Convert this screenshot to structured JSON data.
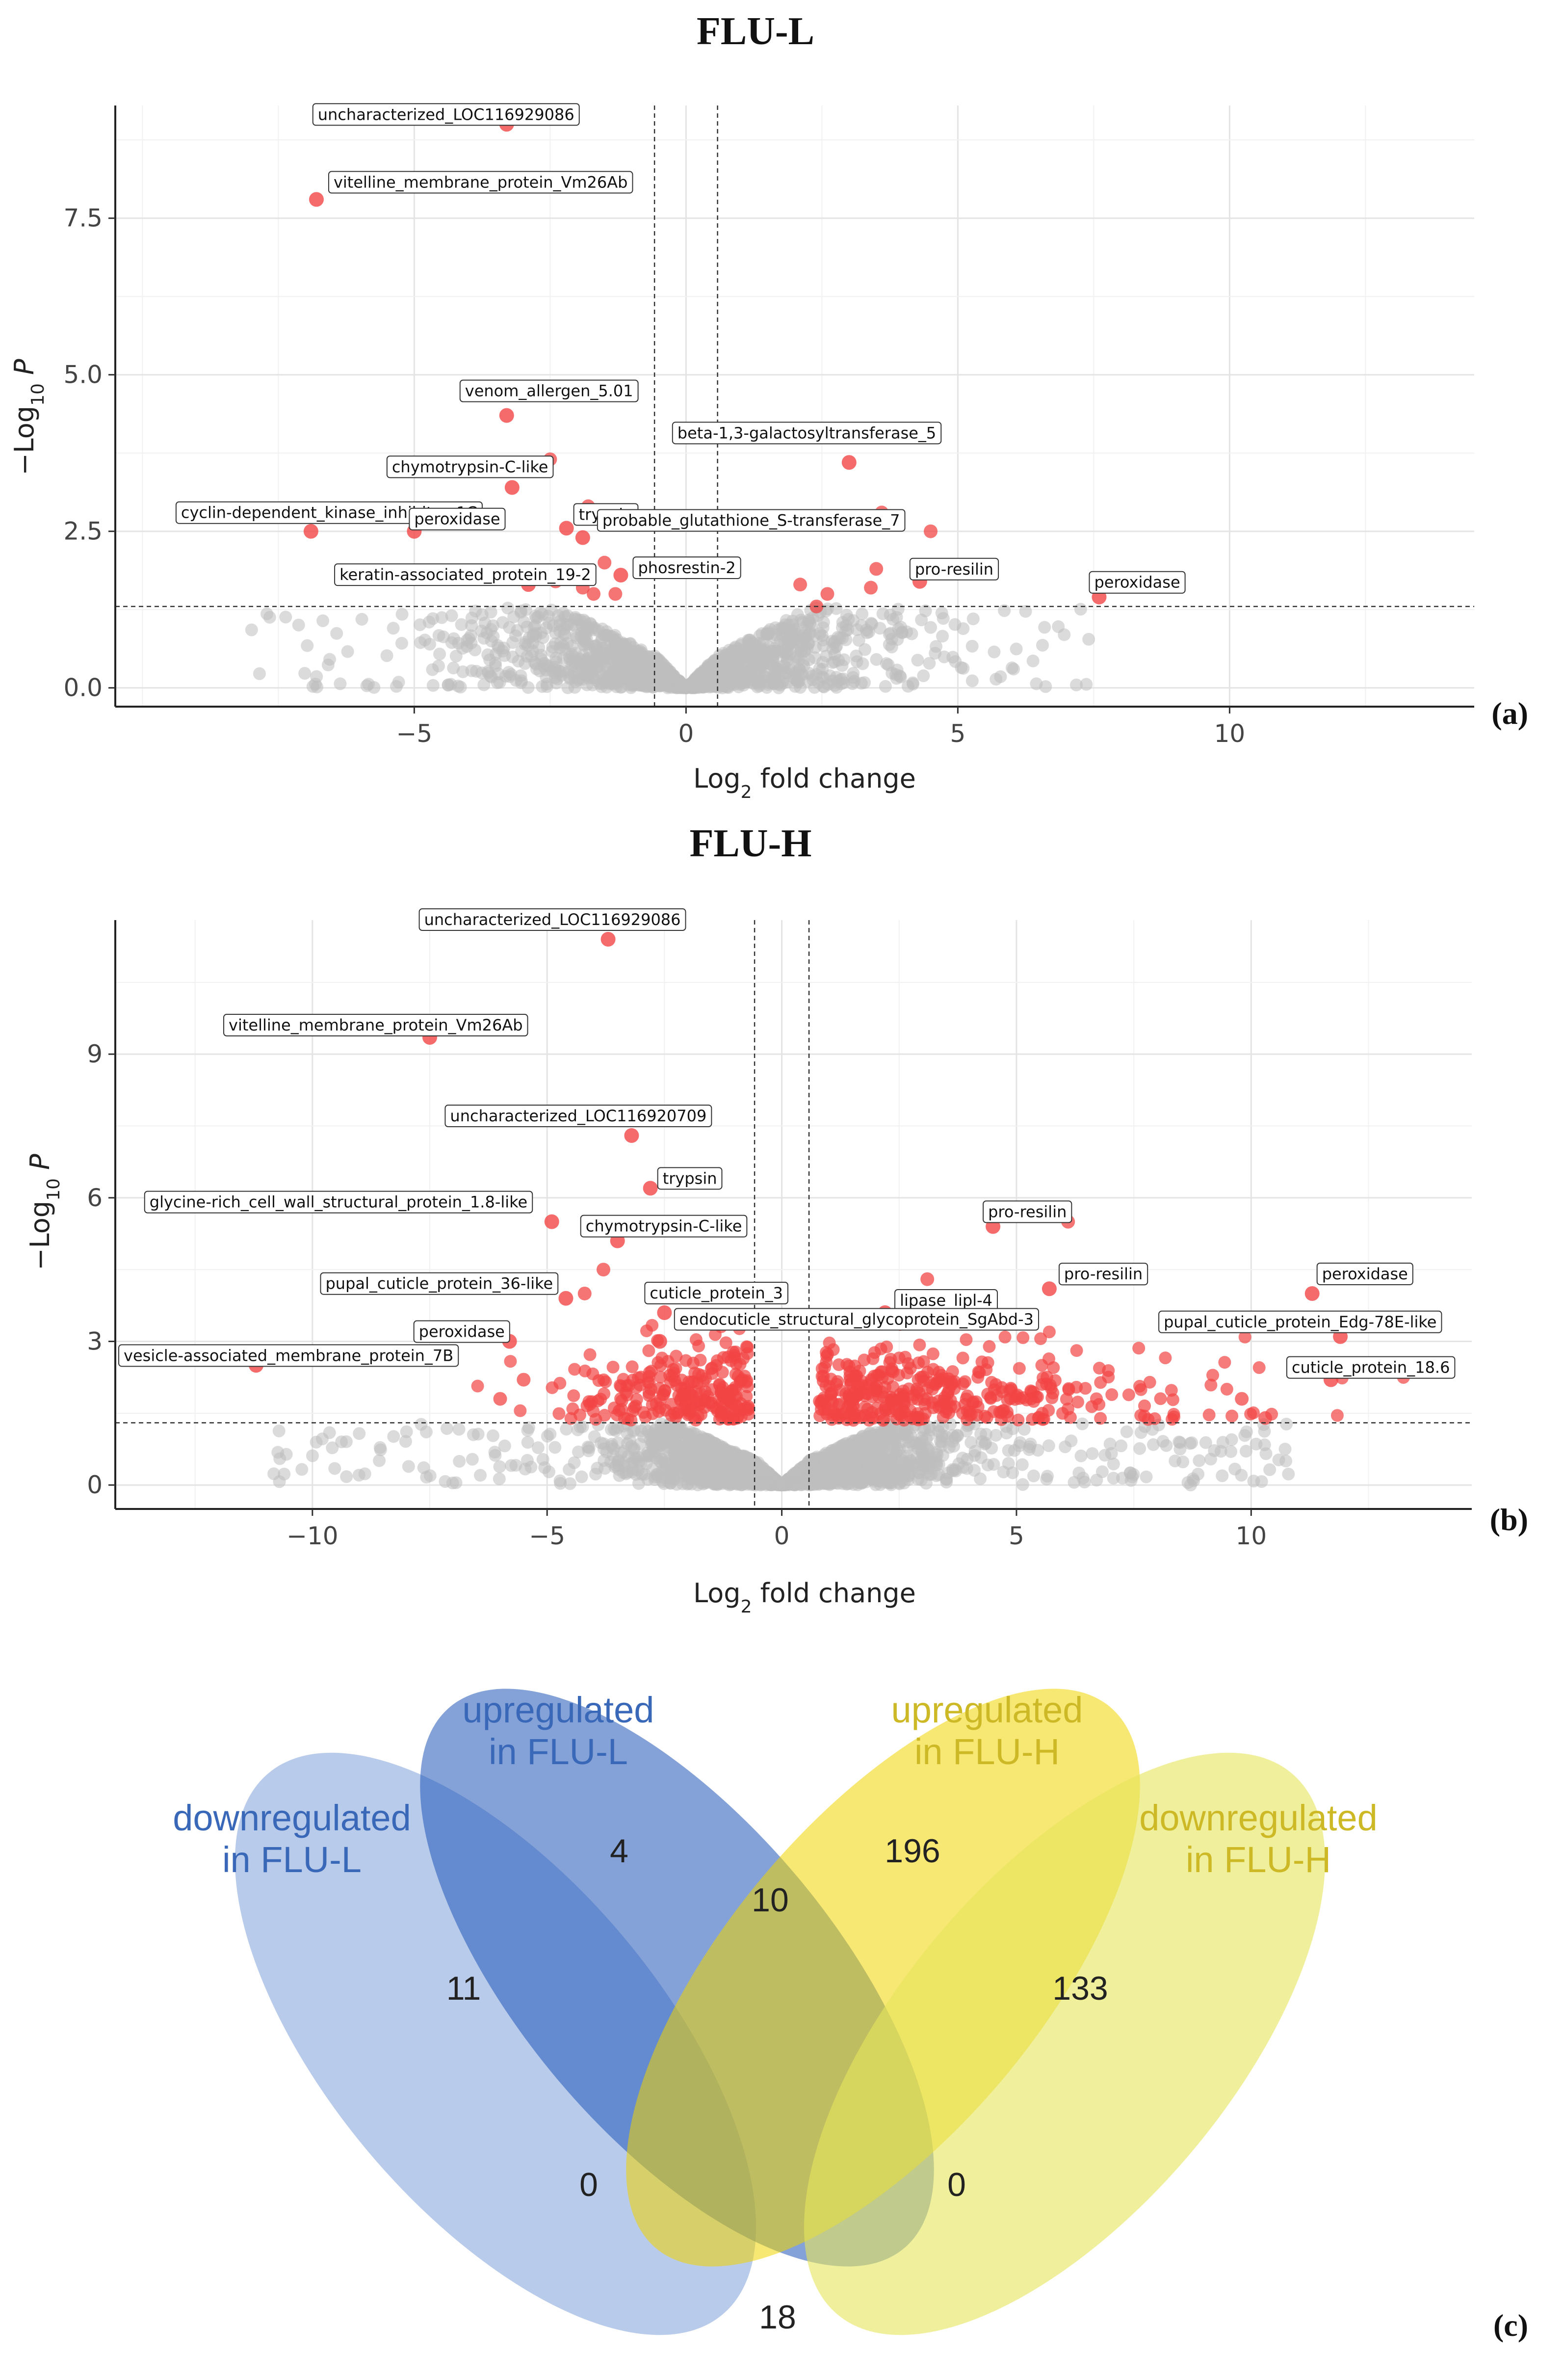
{
  "colors": {
    "significant": "#f24545",
    "nonsignificant": "#bdbdbd",
    "blue_dark": "#1f55b8",
    "blue_light": "#8aa8dc",
    "yellow_bright": "#f0d400",
    "yellow_light": "#e6e45a",
    "blue_text": "#3a68b8",
    "yellow_text": "#cdb826"
  },
  "chart_data": [
    {
      "type": "scatter",
      "panel": "(a)",
      "title": "FLU-L",
      "xlabel": "Log2 fold change",
      "ylabel": "−Log10 P",
      "xlim": [
        -10.5,
        14.5
      ],
      "ylim": [
        -0.3,
        9.3
      ],
      "xticks": [
        -5,
        0,
        5,
        10
      ],
      "xtick_labels": [
        "−5",
        "0",
        "5",
        "10"
      ],
      "yticks": [
        0,
        2.5,
        5,
        7.5
      ],
      "ytick_labels": [
        "0.0",
        "2.5",
        "5.0",
        "7.5"
      ],
      "fc_cutoff": 0.58,
      "p_cutoff": 1.3,
      "labelled_points": [
        {
          "x": -3.3,
          "y": 9.0,
          "label": "uncharacterized_LOC116929086"
        },
        {
          "x": -6.8,
          "y": 7.8,
          "label": "vitelline_membrane_protein_Vm26Ab"
        },
        {
          "x": -3.3,
          "y": 4.35,
          "label": "venom_allergen_5.01"
        },
        {
          "x": -3.2,
          "y": 3.2,
          "label": "chymotrypsin-C-like"
        },
        {
          "x": -6.9,
          "y": 2.5,
          "label": "cyclin-dependent_kinase_inhibitor_1C"
        },
        {
          "x": -2.2,
          "y": 2.55,
          "label": "trypsin"
        },
        {
          "x": -5.0,
          "y": 2.5,
          "label": "peroxidase"
        },
        {
          "x": -1.9,
          "y": 2.4,
          "label": "probable_glutathione_S-transferase_7"
        },
        {
          "x": -1.2,
          "y": 1.8,
          "label": "phosrestin-2"
        },
        {
          "x": -2.9,
          "y": 1.65,
          "label": "keratin-associated_protein_19-2"
        },
        {
          "x": 3.0,
          "y": 3.6,
          "label": "beta-1,3-galactosyltransferase_5"
        },
        {
          "x": 4.3,
          "y": 1.7,
          "label": "pro-resilin"
        },
        {
          "x": 7.6,
          "y": 1.45,
          "label": "peroxidase"
        }
      ],
      "other_significant": [
        [
          -2.5,
          3.65
        ],
        [
          -1.8,
          2.9
        ],
        [
          -2.2,
          1.8
        ],
        [
          -1.5,
          2.0
        ],
        [
          -1.9,
          1.6
        ],
        [
          -1.3,
          1.5
        ],
        [
          -2.4,
          1.7
        ],
        [
          2.1,
          1.65
        ],
        [
          2.6,
          1.5
        ],
        [
          2.4,
          1.3
        ],
        [
          3.6,
          2.8
        ],
        [
          4.5,
          2.5
        ],
        [
          3.5,
          1.9
        ],
        [
          3.4,
          1.6
        ],
        [
          -1.7,
          1.5
        ]
      ]
    },
    {
      "type": "scatter",
      "panel": "(b)",
      "title": "FLU-H",
      "xlabel": "Log2 fold change",
      "ylabel": "−Log10 P",
      "xlim": [
        -14.2,
        14.7
      ],
      "ylim": [
        -0.5,
        11.8
      ],
      "xticks": [
        -10,
        -5,
        0,
        5,
        10
      ],
      "xtick_labels": [
        "−10",
        "−5",
        "0",
        "5",
        "10"
      ],
      "yticks": [
        0,
        3,
        6,
        9
      ],
      "ytick_labels": [
        "0",
        "3",
        "6",
        "9"
      ],
      "fc_cutoff": 0.58,
      "p_cutoff": 1.3,
      "labelled_points": [
        {
          "x": -3.7,
          "y": 11.4,
          "label": "uncharacterized_LOC116929086"
        },
        {
          "x": -7.5,
          "y": 9.35,
          "label": "vitelline_membrane_protein_Vm26Ab"
        },
        {
          "x": -3.2,
          "y": 7.3,
          "label": "uncharacterized_LOC116920709"
        },
        {
          "x": -2.8,
          "y": 6.2,
          "label": "trypsin"
        },
        {
          "x": -4.9,
          "y": 5.5,
          "label": "glycine-rich_cell_wall_structural_protein_1.8-like"
        },
        {
          "x": -3.5,
          "y": 5.1,
          "label": "chymotrypsin-C-like"
        },
        {
          "x": -4.6,
          "y": 3.9,
          "label": "pupal_cuticle_protein_36-like"
        },
        {
          "x": -2.5,
          "y": 3.6,
          "label": "cuticle_protein_3"
        },
        {
          "x": -5.8,
          "y": 3.0,
          "label": "peroxidase"
        },
        {
          "x": 2.2,
          "y": 3.6,
          "label": "lipase_lipl-4"
        },
        {
          "x": -2.6,
          "y": 3.0,
          "label": "endocuticle_structural_glycoprotein_SgAbd-3"
        },
        {
          "x": 4.5,
          "y": 5.4,
          "label": "pro-resilin"
        },
        {
          "x": 5.7,
          "y": 4.1,
          "label": "pro-resilin"
        },
        {
          "x": 11.3,
          "y": 4.0,
          "label": "peroxidase"
        },
        {
          "x": 11.9,
          "y": 3.1,
          "label": "pupal_cuticle_protein_Edg-78E-like"
        },
        {
          "x": 11.7,
          "y": 2.2,
          "label": "cuticle_protein_18.6"
        },
        {
          "x": -11.2,
          "y": 2.5,
          "label": "vesicle-associated_membrane_protein_7B"
        }
      ],
      "other_significant": [
        [
          6.1,
          5.5
        ],
        [
          -4.2,
          4.0
        ],
        [
          -3.8,
          4.5
        ],
        [
          -5.5,
          2.2
        ],
        [
          -6.0,
          1.8
        ],
        [
          10.3,
          1.4
        ],
        [
          9.8,
          1.8
        ],
        [
          3.1,
          4.3
        ]
      ]
    }
  ],
  "venn": {
    "panel": "(c)",
    "sets": [
      {
        "line1": "downregulated",
        "line2": "in FLU-L"
      },
      {
        "line1": "upregulated",
        "line2": "in FLU-L"
      },
      {
        "line1": "upregulated",
        "line2": "in FLU-H"
      },
      {
        "line1": "downregulated",
        "line2": "in FLU-H"
      }
    ],
    "counts": {
      "down_L_only": "11",
      "up_L_only": "4",
      "up_L_and_up_H": "10",
      "up_H_only": "196",
      "down_H_only": "133",
      "down_L_and_up_H": "0",
      "up_L_and_down_H": "0",
      "down_L_and_down_H": "18"
    }
  }
}
